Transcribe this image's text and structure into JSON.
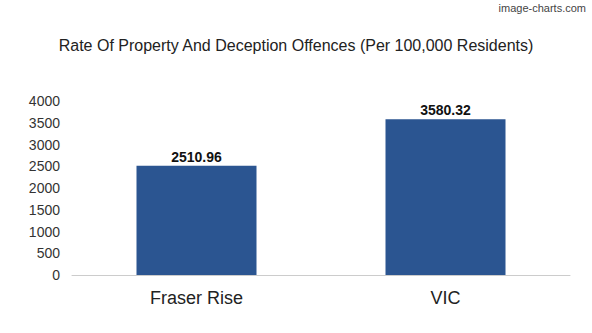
{
  "chart_data": {
    "type": "bar",
    "title": "Rate Of Property And Deception Offences (Per 100,000 Residents)",
    "annotations": [
      "image-charts.com"
    ],
    "categories": [
      "Fraser Rise",
      "VIC"
    ],
    "values": [
      2510.96,
      3580.32
    ],
    "color": "#2b5591",
    "ylim": [
      0,
      4000
    ],
    "yticks": [
      0,
      500,
      1000,
      1500,
      2000,
      2500,
      3000,
      3500,
      4000
    ],
    "grid": false,
    "data_labels": true
  }
}
